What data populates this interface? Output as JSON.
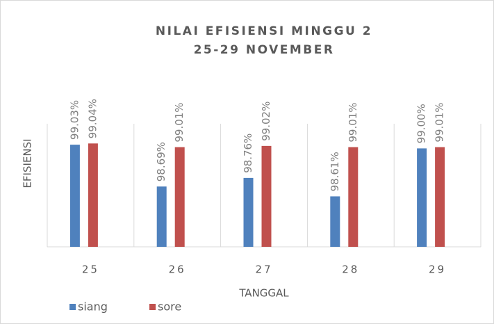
{
  "chart_data": {
    "type": "bar",
    "title": "NILAI EFISIENSI MINGGU 2",
    "subtitle": "25-29 NOVEMBER",
    "x_label": "TANGGAL",
    "y_label": "EFISIENSI",
    "categories": [
      "25",
      "26",
      "27",
      "28",
      "29"
    ],
    "series": [
      {
        "name": "siang",
        "color": "#4f81bd",
        "values": [
          99.03,
          98.69,
          98.76,
          98.61,
          99.0
        ],
        "value_labels": [
          "99.03%",
          "98.69%",
          "98.76%",
          "98.61%",
          "99.00%"
        ]
      },
      {
        "name": "sore",
        "color": "#c0504d",
        "values": [
          99.04,
          99.01,
          99.02,
          99.01,
          99.01
        ],
        "value_labels": [
          "99.04%",
          "99.01%",
          "99.02%",
          "99.01%",
          "99.01%"
        ]
      }
    ],
    "ylim": [
      98.2,
      99.2
    ],
    "legend": "bottom-left"
  }
}
